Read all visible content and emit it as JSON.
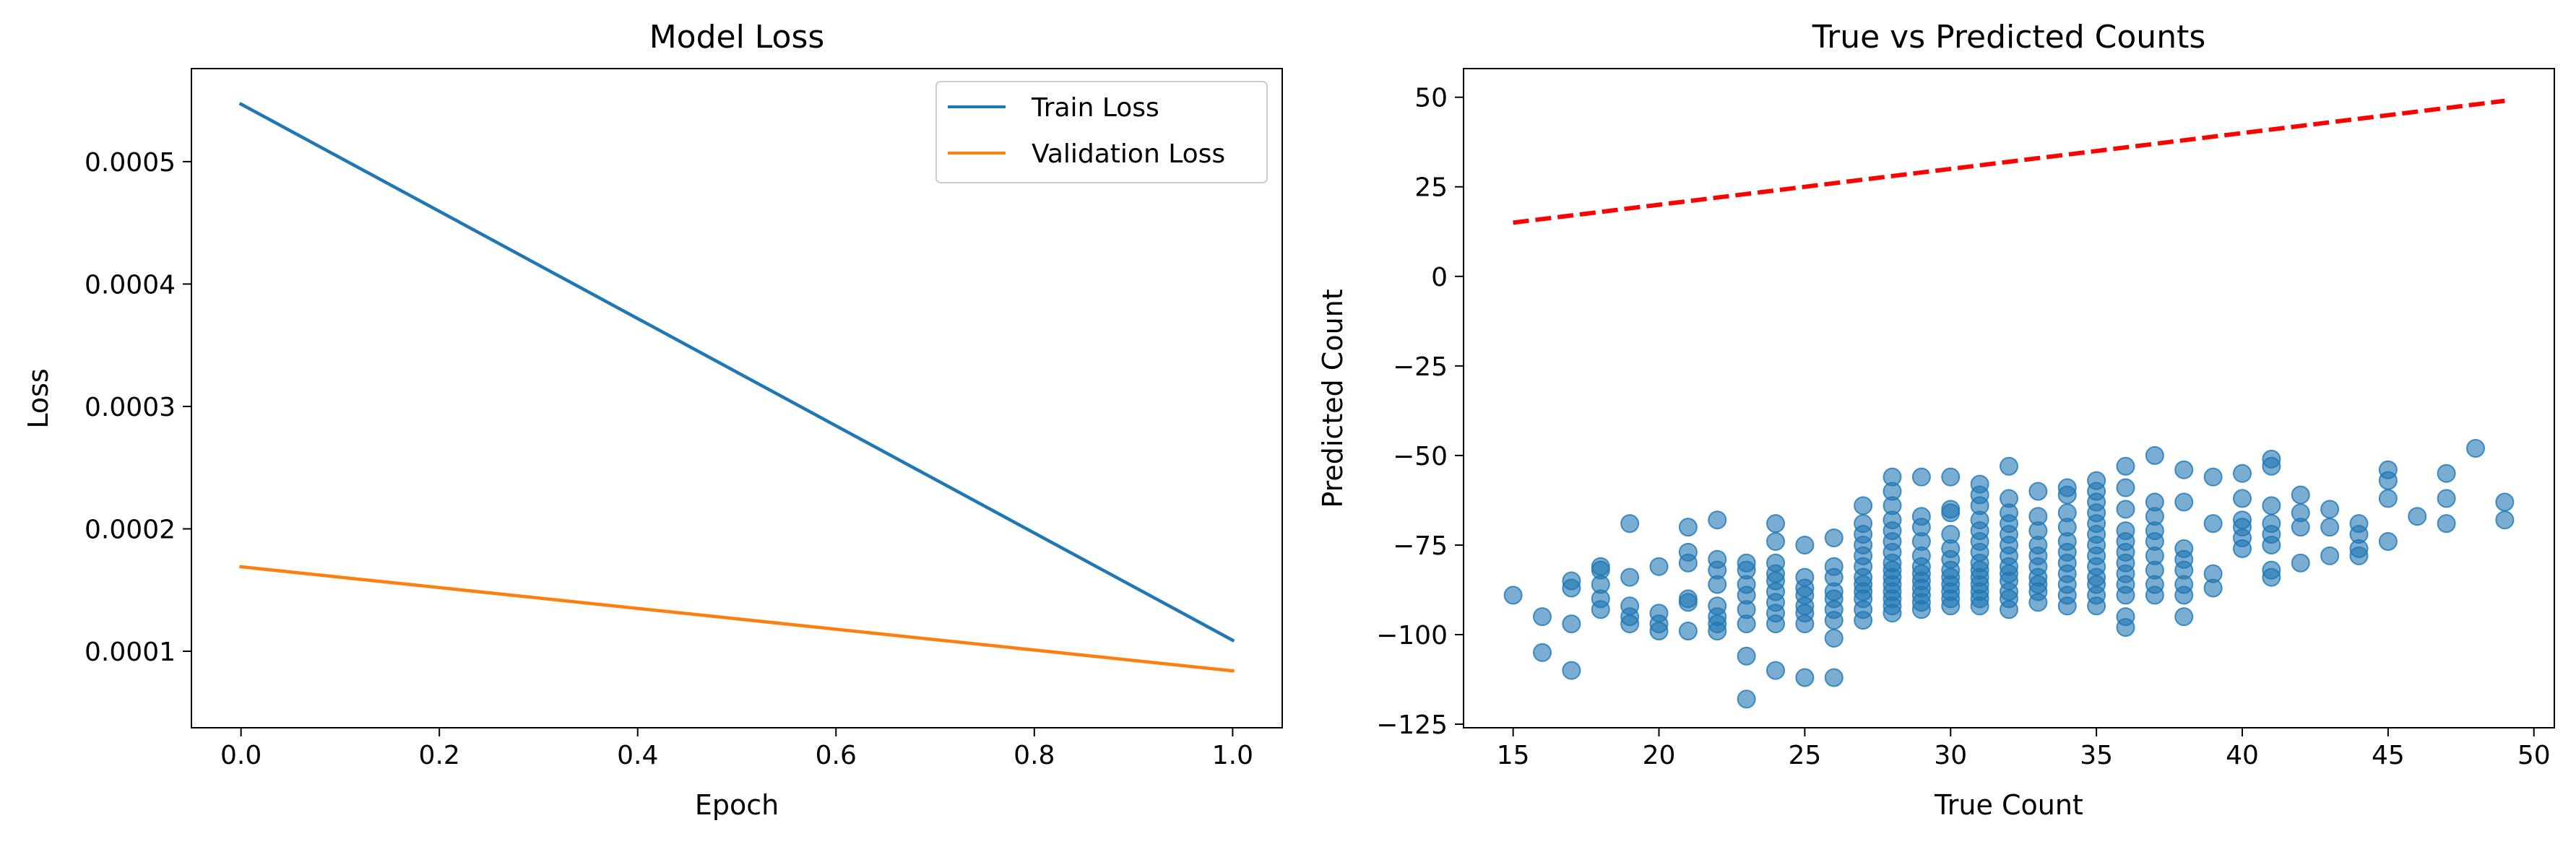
{
  "chart_data": [
    {
      "type": "line",
      "title": "Model Loss",
      "xlabel": "Epoch",
      "ylabel": "Loss",
      "xlim": [
        -0.05,
        1.05
      ],
      "ylim": [
        3.75e-05,
        0.000576
      ],
      "xticks": [
        0.0,
        0.2,
        0.4,
        0.6,
        0.8,
        1.0
      ],
      "xtick_labels": [
        "0.0",
        "0.2",
        "0.4",
        "0.6",
        "0.8",
        "1.0"
      ],
      "yticks": [
        0.0001,
        0.0002,
        0.0003,
        0.0004,
        0.0005
      ],
      "ytick_labels": [
        "0.0001",
        "0.0002",
        "0.0003",
        "0.0004",
        "0.0005"
      ],
      "grid": false,
      "legend_position": "top-right",
      "series": [
        {
          "name": "Train Loss",
          "color": "#1f77b4",
          "x": [
            0,
            1
          ],
          "y": [
            0.000547,
            0.000109
          ]
        },
        {
          "name": "Validation Loss",
          "color": "#ff7f0e",
          "x": [
            0,
            1
          ],
          "y": [
            0.000169,
            8.4e-05
          ]
        }
      ]
    },
    {
      "type": "scatter",
      "title": "True vs Predicted Counts",
      "xlabel": "True Count",
      "ylabel": "Predicted Count",
      "xlim": [
        13.3,
        50.7
      ],
      "ylim": [
        -126,
        58
      ],
      "xticks": [
        15,
        20,
        25,
        30,
        35,
        40,
        45,
        50
      ],
      "xtick_labels": [
        "15",
        "20",
        "25",
        "30",
        "35",
        "40",
        "45",
        "50"
      ],
      "yticks": [
        -125,
        -100,
        -75,
        -50,
        -25,
        0,
        25,
        50
      ],
      "ytick_labels": [
        "−125",
        "−100",
        "−75",
        "−50",
        "−25",
        "0",
        "25",
        "50"
      ],
      "grid": false,
      "point_color": "#1f77b4",
      "reference_line": {
        "color": "#ff0000",
        "x": [
          15,
          49
        ],
        "y": [
          15,
          49
        ]
      },
      "points": [
        [
          15,
          -89
        ],
        [
          16,
          -95
        ],
        [
          16,
          -105
        ],
        [
          17,
          -110
        ],
        [
          17,
          -97
        ],
        [
          17,
          -87
        ],
        [
          17,
          -85
        ],
        [
          18,
          -93
        ],
        [
          18,
          -90
        ],
        [
          18,
          -86
        ],
        [
          18,
          -82
        ],
        [
          18,
          -81
        ],
        [
          19,
          -69
        ],
        [
          19,
          -84
        ],
        [
          19,
          -92
        ],
        [
          19,
          -95
        ],
        [
          19,
          -97
        ],
        [
          20,
          -81
        ],
        [
          20,
          -94
        ],
        [
          20,
          -97
        ],
        [
          20,
          -99
        ],
        [
          21,
          -70
        ],
        [
          21,
          -77
        ],
        [
          21,
          -80
        ],
        [
          21,
          -90
        ],
        [
          21,
          -91
        ],
        [
          21,
          -99
        ],
        [
          22,
          -68
        ],
        [
          22,
          -79
        ],
        [
          22,
          -82
        ],
        [
          22,
          -86
        ],
        [
          22,
          -92
        ],
        [
          22,
          -95
        ],
        [
          22,
          -97
        ],
        [
          22,
          -99
        ],
        [
          23,
          -118
        ],
        [
          23,
          -106
        ],
        [
          23,
          -97
        ],
        [
          23,
          -93
        ],
        [
          23,
          -89
        ],
        [
          23,
          -86
        ],
        [
          23,
          -82
        ],
        [
          23,
          -80
        ],
        [
          24,
          -69
        ],
        [
          24,
          -74
        ],
        [
          24,
          -80
        ],
        [
          24,
          -83
        ],
        [
          24,
          -85
        ],
        [
          24,
          -88
        ],
        [
          24,
          -91
        ],
        [
          24,
          -94
        ],
        [
          24,
          -97
        ],
        [
          24,
          -110
        ],
        [
          25,
          -75
        ],
        [
          25,
          -84
        ],
        [
          25,
          -87
        ],
        [
          25,
          -89
        ],
        [
          25,
          -92
        ],
        [
          25,
          -94
        ],
        [
          25,
          -97
        ],
        [
          25,
          -112
        ],
        [
          26,
          -73
        ],
        [
          26,
          -81
        ],
        [
          26,
          -84
        ],
        [
          26,
          -88
        ],
        [
          26,
          -90
        ],
        [
          26,
          -93
        ],
        [
          26,
          -96
        ],
        [
          26,
          -101
        ],
        [
          26,
          -112
        ],
        [
          27,
          -64
        ],
        [
          27,
          -69
        ],
        [
          27,
          -72
        ],
        [
          27,
          -75
        ],
        [
          27,
          -78
        ],
        [
          27,
          -81
        ],
        [
          27,
          -84
        ],
        [
          27,
          -86
        ],
        [
          27,
          -88
        ],
        [
          27,
          -90
        ],
        [
          27,
          -93
        ],
        [
          27,
          -96
        ],
        [
          28,
          -56
        ],
        [
          28,
          -60
        ],
        [
          28,
          -64
        ],
        [
          28,
          -68
        ],
        [
          28,
          -71
        ],
        [
          28,
          -74
        ],
        [
          28,
          -77
        ],
        [
          28,
          -80
        ],
        [
          28,
          -82
        ],
        [
          28,
          -84
        ],
        [
          28,
          -86
        ],
        [
          28,
          -88
        ],
        [
          28,
          -90
        ],
        [
          28,
          -92
        ],
        [
          28,
          -94
        ],
        [
          29,
          -56
        ],
        [
          29,
          -67
        ],
        [
          29,
          -70
        ],
        [
          29,
          -74
        ],
        [
          29,
          -78
        ],
        [
          29,
          -81
        ],
        [
          29,
          -83
        ],
        [
          29,
          -85
        ],
        [
          29,
          -87
        ],
        [
          29,
          -89
        ],
        [
          29,
          -91
        ],
        [
          29,
          -93
        ],
        [
          30,
          -56
        ],
        [
          30,
          -65
        ],
        [
          30,
          -66
        ],
        [
          30,
          -72
        ],
        [
          30,
          -76
        ],
        [
          30,
          -79
        ],
        [
          30,
          -82
        ],
        [
          30,
          -84
        ],
        [
          30,
          -86
        ],
        [
          30,
          -88
        ],
        [
          30,
          -90
        ],
        [
          30,
          -92
        ],
        [
          31,
          -58
        ],
        [
          31,
          -61
        ],
        [
          31,
          -64
        ],
        [
          31,
          -68
        ],
        [
          31,
          -71
        ],
        [
          31,
          -74
        ],
        [
          31,
          -77
        ],
        [
          31,
          -80
        ],
        [
          31,
          -82
        ],
        [
          31,
          -84
        ],
        [
          31,
          -86
        ],
        [
          31,
          -88
        ],
        [
          31,
          -90
        ],
        [
          31,
          -92
        ],
        [
          32,
          -53
        ],
        [
          32,
          -62
        ],
        [
          32,
          -66
        ],
        [
          32,
          -69
        ],
        [
          32,
          -72
        ],
        [
          32,
          -75
        ],
        [
          32,
          -78
        ],
        [
          32,
          -81
        ],
        [
          32,
          -83
        ],
        [
          32,
          -85
        ],
        [
          32,
          -88
        ],
        [
          32,
          -90
        ],
        [
          32,
          -93
        ],
        [
          33,
          -60
        ],
        [
          33,
          -67
        ],
        [
          33,
          -71
        ],
        [
          33,
          -75
        ],
        [
          33,
          -78
        ],
        [
          33,
          -81
        ],
        [
          33,
          -84
        ],
        [
          33,
          -86
        ],
        [
          33,
          -88
        ],
        [
          33,
          -91
        ],
        [
          34,
          -59
        ],
        [
          34,
          -61
        ],
        [
          34,
          -66
        ],
        [
          34,
          -70
        ],
        [
          34,
          -74
        ],
        [
          34,
          -77
        ],
        [
          34,
          -80
        ],
        [
          34,
          -83
        ],
        [
          34,
          -86
        ],
        [
          34,
          -89
        ],
        [
          34,
          -92
        ],
        [
          35,
          -57
        ],
        [
          35,
          -60
        ],
        [
          35,
          -63
        ],
        [
          35,
          -66
        ],
        [
          35,
          -69
        ],
        [
          35,
          -72
        ],
        [
          35,
          -75
        ],
        [
          35,
          -78
        ],
        [
          35,
          -81
        ],
        [
          35,
          -84
        ],
        [
          35,
          -86
        ],
        [
          35,
          -89
        ],
        [
          35,
          -92
        ],
        [
          36,
          -53
        ],
        [
          36,
          -59
        ],
        [
          36,
          -65
        ],
        [
          36,
          -71
        ],
        [
          36,
          -74
        ],
        [
          36,
          -77
        ],
        [
          36,
          -80
        ],
        [
          36,
          -83
        ],
        [
          36,
          -86
        ],
        [
          36,
          -89
        ],
        [
          36,
          -95
        ],
        [
          36,
          -98
        ],
        [
          37,
          -50
        ],
        [
          37,
          -63
        ],
        [
          37,
          -67
        ],
        [
          37,
          -71
        ],
        [
          37,
          -74
        ],
        [
          37,
          -78
        ],
        [
          37,
          -82
        ],
        [
          37,
          -86
        ],
        [
          37,
          -89
        ],
        [
          38,
          -54
        ],
        [
          38,
          -63
        ],
        [
          38,
          -76
        ],
        [
          38,
          -79
        ],
        [
          38,
          -82
        ],
        [
          38,
          -86
        ],
        [
          38,
          -89
        ],
        [
          38,
          -95
        ],
        [
          39,
          -56
        ],
        [
          39,
          -69
        ],
        [
          39,
          -83
        ],
        [
          39,
          -87
        ],
        [
          40,
          -55
        ],
        [
          40,
          -62
        ],
        [
          40,
          -68
        ],
        [
          40,
          -70
        ],
        [
          40,
          -73
        ],
        [
          40,
          -76
        ],
        [
          41,
          -51
        ],
        [
          41,
          -53
        ],
        [
          41,
          -64
        ],
        [
          41,
          -69
        ],
        [
          41,
          -72
        ],
        [
          41,
          -75
        ],
        [
          41,
          -82
        ],
        [
          41,
          -84
        ],
        [
          42,
          -61
        ],
        [
          42,
          -66
        ],
        [
          42,
          -70
        ],
        [
          42,
          -80
        ],
        [
          43,
          -65
        ],
        [
          43,
          -70
        ],
        [
          43,
          -78
        ],
        [
          44,
          -69
        ],
        [
          44,
          -72
        ],
        [
          44,
          -76
        ],
        [
          44,
          -78
        ],
        [
          45,
          -54
        ],
        [
          45,
          -57
        ],
        [
          45,
          -62
        ],
        [
          45,
          -74
        ],
        [
          46,
          -67
        ],
        [
          47,
          -55
        ],
        [
          47,
          -62
        ],
        [
          47,
          -69
        ],
        [
          48,
          -48
        ],
        [
          49,
          -63
        ],
        [
          49,
          -68
        ]
      ]
    }
  ]
}
